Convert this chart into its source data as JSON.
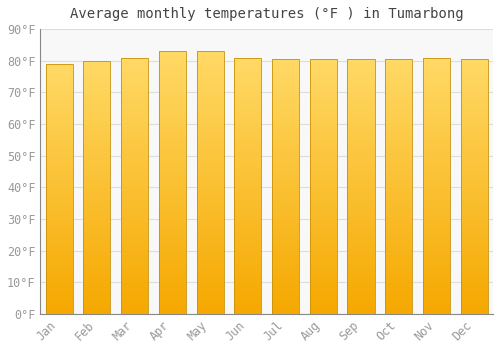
{
  "title": "Average monthly temperatures (°F ) in Tumarbong",
  "months": [
    "Jan",
    "Feb",
    "Mar",
    "Apr",
    "May",
    "Jun",
    "Jul",
    "Aug",
    "Sep",
    "Oct",
    "Nov",
    "Dec"
  ],
  "values": [
    79.0,
    80.0,
    81.0,
    83.0,
    83.0,
    81.0,
    80.5,
    80.5,
    80.5,
    80.5,
    81.0,
    80.5
  ],
  "bar_color_bottom": "#F5A800",
  "bar_color_top": "#FFD966",
  "bar_edge_color": "#C8910A",
  "background_color": "#FFFFFF",
  "plot_bg_color": "#F8F8F8",
  "grid_color": "#DDDDDD",
  "yticks": [
    0,
    10,
    20,
    30,
    40,
    50,
    60,
    70,
    80,
    90
  ],
  "ylim": [
    0,
    90
  ],
  "title_fontsize": 10,
  "tick_fontsize": 8.5,
  "tick_color": "#999999",
  "font_family": "monospace"
}
